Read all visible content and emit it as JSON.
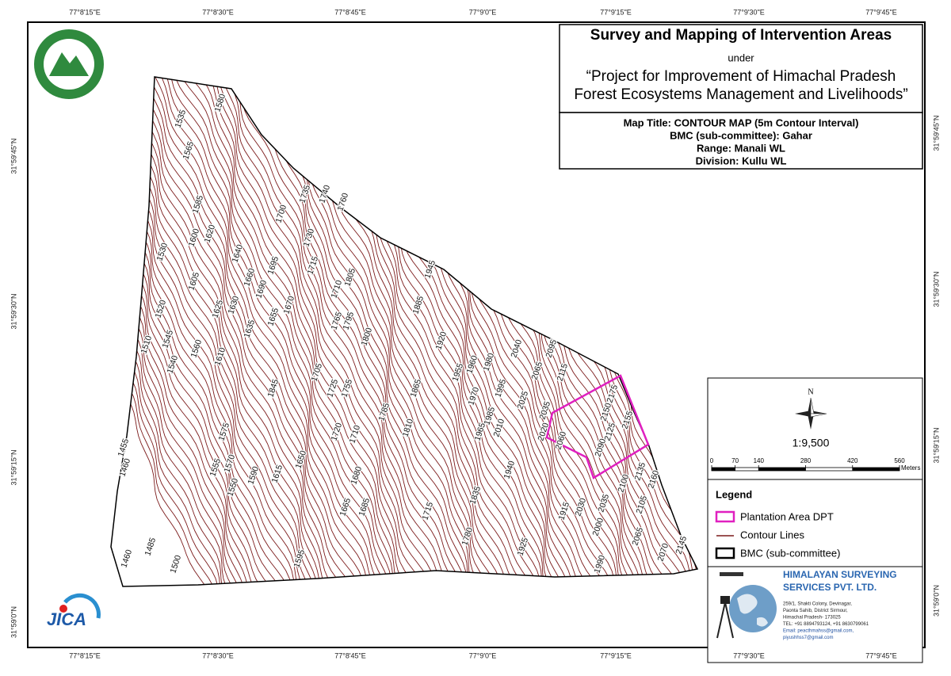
{
  "header": {
    "title": "Survey and Mapping of Intervention Areas",
    "under": "under",
    "project_line1": "“Project for Improvement of Himachal Pradesh",
    "project_line2": "Forest Ecosystems Management and Livelihoods”"
  },
  "map_info": {
    "map_title": "Map Title: CONTOUR MAP (5m Contour Interval)",
    "bmc": "BMC (sub-committee): Gahar",
    "range": "Range: Manali WL",
    "division": "Division: Kullu WL"
  },
  "grid_labels": {
    "longitude": [
      "77°8'15\"E",
      "77°8'30\"E",
      "77°8'45\"E",
      "77°9'0\"E",
      "77°9'15\"E",
      "77°9'30\"E",
      "77°9'45\"E"
    ],
    "latitude": [
      "31°59'45\"N",
      "31°59'30\"N",
      "31°59'15\"N",
      "31°59'0\"N"
    ]
  },
  "north": "N",
  "scale": "1:9,500",
  "scale_bar": {
    "ticks": [
      0,
      70,
      140,
      280,
      420,
      560
    ],
    "unit": "Meters"
  },
  "legend": {
    "title": "Legend",
    "items": [
      "Plantation Area DPT",
      "Contour Lines",
      "BMC (sub-committee)"
    ]
  },
  "company": {
    "name_line1": "HIMALAYAN SURVEYING",
    "name_line2": "SERVICES PVT. LTD.",
    "address": [
      "259/1, Shakti Colony, Devinagar,",
      "Paonta Sahib, District Sirmour,",
      "Himachal Pradesh- 173025",
      "TEL: +91 8894793124, +91 8630799061",
      "Email: peacthmahss@gmail.com,",
      "piyushhss7@gmail.com"
    ]
  },
  "logos": {
    "jica": "JICA"
  },
  "contour_labels": [
    1535,
    1580,
    1565,
    1585,
    1530,
    1600,
    1620,
    1605,
    1520,
    1510,
    1545,
    1540,
    1560,
    1625,
    1630,
    1610,
    1635,
    1640,
    1660,
    1700,
    1735,
    1740,
    1760,
    1730,
    1715,
    1695,
    1690,
    1670,
    1655,
    1710,
    1805,
    1765,
    1795,
    1800,
    1845,
    1705,
    1725,
    1755,
    1945,
    1885,
    1920,
    1785,
    1865,
    1810,
    1955,
    1960,
    1970,
    1980,
    1995,
    2040,
    2065,
    2095,
    2115,
    2025,
    2035,
    1985,
    2010,
    1965,
    2020,
    2060,
    2175,
    2150,
    2155,
    2125,
    2090,
    1720,
    1710,
    1575,
    1570,
    1555,
    1550,
    1590,
    1615,
    1650,
    1680,
    1665,
    1685,
    1455,
    1460,
    1485,
    1500,
    1460,
    1595,
    1715,
    1780,
    1835,
    1940,
    1915,
    2030,
    2035,
    2100,
    2135,
    2160,
    2105,
    2000,
    2065,
    2070,
    2145,
    1925,
    1990
  ]
}
